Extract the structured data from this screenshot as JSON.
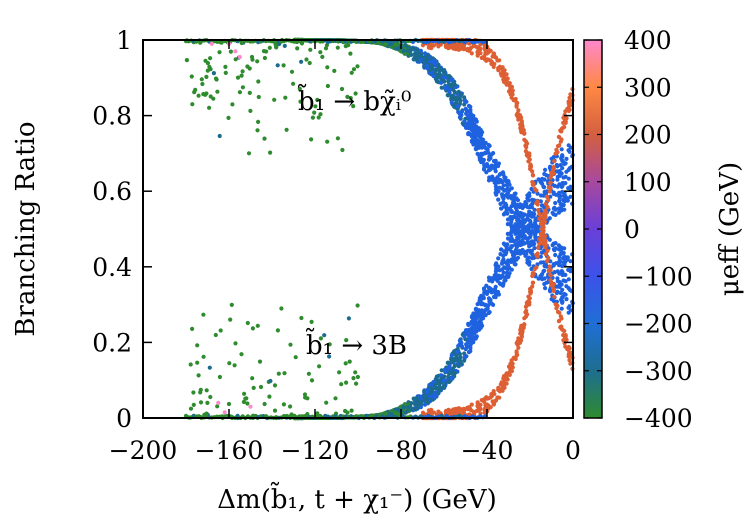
{
  "chart_data": {
    "type": "scatter",
    "title": "",
    "xlabel": "Δm(b̃₁, t + χ₁⁻)  (GeV)",
    "ylabel": "Branching Ratio",
    "xlim": [
      -200,
      0
    ],
    "ylim": [
      0,
      1
    ],
    "x_ticks": [
      "−200",
      "−160",
      "−120",
      "−80",
      "−40",
      "0"
    ],
    "y_ticks": [
      "0",
      "0.2",
      "0.4",
      "0.6",
      "0.8",
      "1"
    ],
    "colorbar": {
      "label": "μeff  (GeV)",
      "range": [
        -400,
        400
      ],
      "ticks": [
        "400",
        "300",
        "200",
        "100",
        "0",
        "−100",
        "−200",
        "−300",
        "−400"
      ],
      "colors": [
        "#2e8b2e",
        "#1e6e90",
        "#1f6fd6",
        "#3c52ea",
        "#6a3fd8",
        "#a8499e",
        "#d2603f",
        "#ff8844",
        "#ff88cc"
      ]
    },
    "annotations": [
      "b̃₁ → bχ̃ᵢ⁰",
      "b̃₁ → 3B"
    ],
    "series": [
      {
        "name": "BR(b̃₁ → bχ̃ᵢ⁰)",
        "description": "upper band, decreasing from 1 to 0 as Δm → 0",
        "x_range": [
          -180,
          0
        ],
        "y_range": [
          0,
          1
        ]
      },
      {
        "name": "BR(b̃₁ → 3B)",
        "description": "lower band, increasing from 0 to 1 as Δm → 0",
        "x_range": [
          -180,
          0
        ],
        "y_range": [
          0,
          1
        ]
      }
    ],
    "ticks_values": {
      "x": [
        -200,
        -160,
        -120,
        -80,
        -40,
        0
      ],
      "y": [
        0,
        0.2,
        0.4,
        0.6,
        0.8,
        1
      ]
    }
  }
}
